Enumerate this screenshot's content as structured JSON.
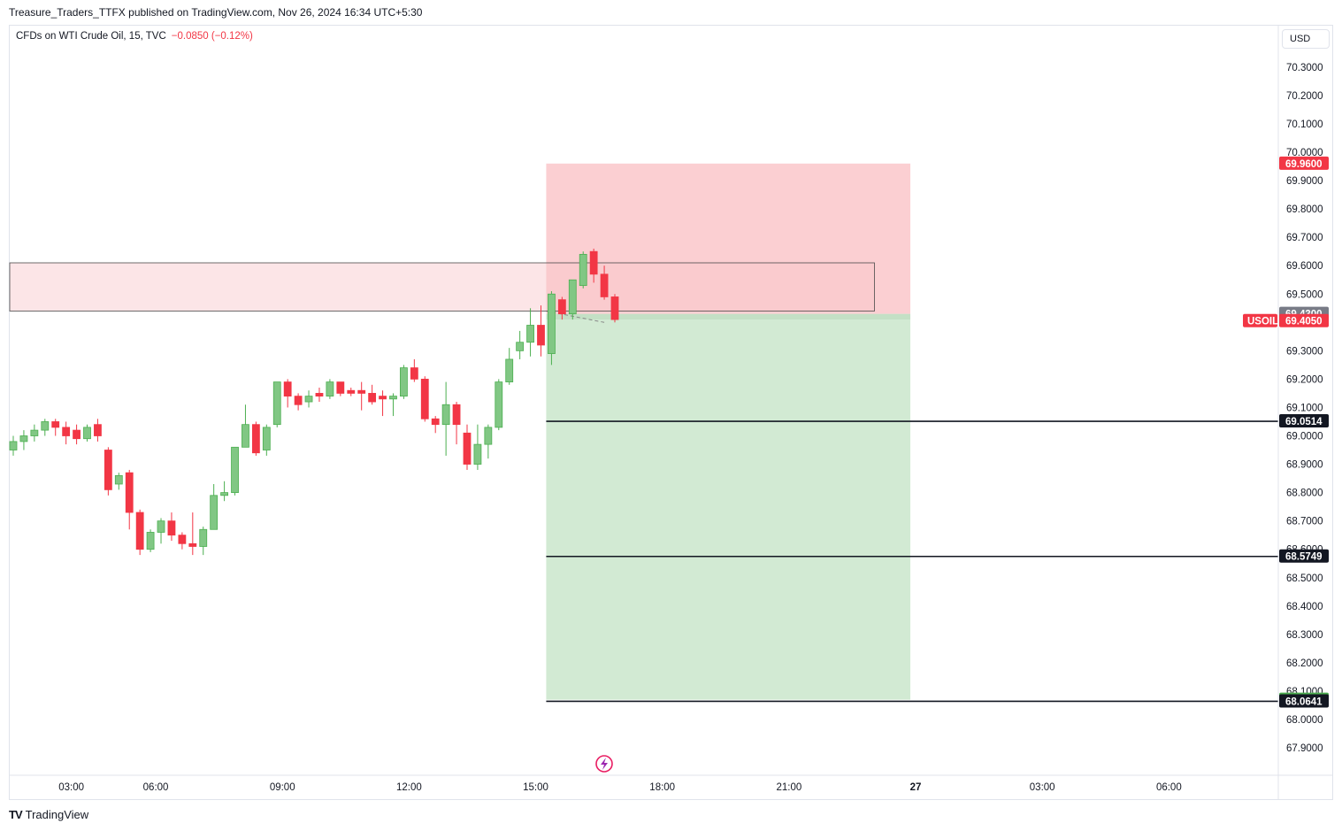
{
  "header": {
    "attribution": "Treasure_Traders_TTFX published on TradingView.com, Nov 26, 2024 16:34 UTC+5:30"
  },
  "legend": {
    "symbol": "CFDs on WTI Crude Oil, 15, TVC",
    "change": "−0.0850 (−0.12%)"
  },
  "currency": "USD",
  "footer": {
    "brand": "TradingView",
    "logo": "TV"
  },
  "colors": {
    "up": "#81c784",
    "up_border": "#4caf50",
    "down": "#f23645",
    "risk_fill": "#f7a8ad",
    "reward_fill": "#a5d6a7",
    "zone_fill": "#fce4e6",
    "tag_dark": "#131722",
    "tag_gray": "#787b86",
    "tag_green": "#4caf50",
    "tag_red": "#f23645"
  },
  "chart_data": {
    "type": "candlestick",
    "symbol_tag": "USOIL",
    "y_ticks": [
      "70.3000",
      "70.2000",
      "70.1000",
      "70.0000",
      "69.9000",
      "69.8000",
      "69.7000",
      "69.6000",
      "69.5000",
      "69.4000",
      "69.3000",
      "69.2000",
      "69.1000",
      "69.0000",
      "68.9000",
      "68.8000",
      "68.7000",
      "68.6000",
      "68.5000",
      "68.4000",
      "68.3000",
      "68.2000",
      "68.1000",
      "68.0000",
      "67.9000"
    ],
    "y_tick_values": [
      70.3,
      70.2,
      70.1,
      70.0,
      69.9,
      69.8,
      69.7,
      69.6,
      69.5,
      69.4,
      69.3,
      69.2,
      69.1,
      69.0,
      68.9,
      68.8,
      68.7,
      68.6,
      68.5,
      68.4,
      68.3,
      68.2,
      68.1,
      68.0,
      67.9
    ],
    "x_ticks": [
      {
        "label": "03:00",
        "bar": 5.5,
        "bold": false
      },
      {
        "label": "06:00",
        "bar": 13.5,
        "bold": false
      },
      {
        "label": "09:00",
        "bar": 25.5,
        "bold": false
      },
      {
        "label": "12:00",
        "bar": 37.5,
        "bold": false
      },
      {
        "label": "15:00",
        "bar": 49.5,
        "bold": false
      },
      {
        "label": "18:00",
        "bar": 61.5,
        "bold": false
      },
      {
        "label": "21:00",
        "bar": 73.5,
        "bold": false
      },
      {
        "label": "27",
        "bar": 85.5,
        "bold": true
      },
      {
        "label": "03:00",
        "bar": 97.5,
        "bold": false
      },
      {
        "label": "06:00",
        "bar": 109.5,
        "bold": false
      }
    ],
    "candles": [
      [
        68.95,
        68.98,
        68.93,
        69.0
      ],
      [
        68.98,
        69.0,
        68.95,
        69.02
      ],
      [
        69.0,
        69.02,
        68.98,
        69.04
      ],
      [
        69.02,
        69.05,
        69.0,
        69.06
      ],
      [
        69.05,
        69.03,
        69.0,
        69.06
      ],
      [
        69.03,
        69.0,
        68.97,
        69.05
      ],
      [
        69.02,
        68.99,
        68.97,
        69.04
      ],
      [
        68.99,
        69.03,
        68.98,
        69.04
      ],
      [
        69.04,
        69.0,
        68.98,
        69.06
      ],
      [
        68.95,
        68.81,
        68.79,
        68.96
      ],
      [
        68.83,
        68.86,
        68.81,
        68.87
      ],
      [
        68.87,
        68.73,
        68.67,
        68.88
      ],
      [
        68.73,
        68.6,
        68.58,
        68.74
      ],
      [
        68.6,
        68.66,
        68.59,
        68.67
      ],
      [
        68.66,
        68.7,
        68.62,
        68.71
      ],
      [
        68.7,
        68.65,
        68.63,
        68.73
      ],
      [
        68.65,
        68.62,
        68.6,
        68.66
      ],
      [
        68.62,
        68.61,
        68.58,
        68.73
      ],
      [
        68.61,
        68.67,
        68.58,
        68.68
      ],
      [
        68.67,
        68.79,
        68.67,
        68.83
      ],
      [
        68.79,
        68.8,
        68.77,
        68.84
      ],
      [
        68.8,
        68.96,
        68.79,
        68.96
      ],
      [
        68.96,
        69.04,
        68.96,
        69.11
      ],
      [
        69.04,
        68.94,
        68.93,
        69.05
      ],
      [
        68.95,
        69.03,
        68.93,
        69.04
      ],
      [
        69.04,
        69.19,
        69.03,
        69.19
      ],
      [
        69.19,
        69.14,
        69.1,
        69.2
      ],
      [
        69.14,
        69.11,
        69.09,
        69.15
      ],
      [
        69.12,
        69.14,
        69.1,
        69.16
      ],
      [
        69.15,
        69.14,
        69.12,
        69.17
      ],
      [
        69.14,
        69.19,
        69.13,
        69.2
      ],
      [
        69.19,
        69.15,
        69.14,
        69.19
      ],
      [
        69.16,
        69.15,
        69.14,
        69.17
      ],
      [
        69.16,
        69.15,
        69.09,
        69.19
      ],
      [
        69.15,
        69.12,
        69.11,
        69.18
      ],
      [
        69.14,
        69.13,
        69.07,
        69.16
      ],
      [
        69.13,
        69.14,
        69.07,
        69.15
      ],
      [
        69.14,
        69.24,
        69.13,
        69.25
      ],
      [
        69.24,
        69.2,
        69.19,
        69.27
      ],
      [
        69.2,
        69.06,
        69.05,
        69.21
      ],
      [
        69.06,
        69.04,
        69.01,
        69.07
      ],
      [
        69.04,
        69.11,
        68.93,
        69.19
      ],
      [
        69.11,
        69.04,
        68.97,
        69.12
      ],
      [
        69.01,
        68.9,
        68.88,
        69.04
      ],
      [
        68.9,
        68.97,
        68.88,
        69.04
      ],
      [
        68.97,
        69.03,
        68.92,
        69.04
      ],
      [
        69.03,
        69.19,
        69.02,
        69.2
      ],
      [
        69.19,
        69.27,
        69.18,
        69.31
      ],
      [
        69.3,
        69.33,
        69.27,
        69.37
      ],
      [
        69.33,
        69.39,
        69.28,
        69.45
      ],
      [
        69.39,
        69.32,
        69.28,
        69.46
      ],
      [
        69.29,
        69.5,
        69.25,
        69.51
      ],
      [
        69.48,
        69.43,
        69.41,
        69.49
      ],
      [
        69.43,
        69.55,
        69.41,
        69.55
      ],
      [
        69.53,
        69.64,
        69.52,
        69.65
      ],
      [
        69.65,
        69.57,
        69.54,
        69.66
      ],
      [
        69.57,
        69.49,
        69.48,
        69.6
      ],
      [
        69.49,
        69.41,
        69.4,
        69.5
      ]
    ],
    "zone": {
      "top": 69.61,
      "bottom": 69.44,
      "right_bar": 81.6
    },
    "position": {
      "entry_top": 69.43,
      "entry_bottom": 69.41,
      "stop": 69.96,
      "target": 68.07,
      "start_bar": 51,
      "end_bar": 85
    },
    "hlines": [
      {
        "value": 69.0514,
        "start_bar": 51
      },
      {
        "value": 68.5749,
        "start_bar": 51
      },
      {
        "value": 68.0641,
        "start_bar": 51
      }
    ],
    "price_tags": [
      {
        "label": "69.9600",
        "value": 69.96,
        "color": "red"
      },
      {
        "label": "69.4300",
        "value": 69.43,
        "color": "gray"
      },
      {
        "label": "69.4050",
        "value": 69.405,
        "color": "red"
      },
      {
        "label": "69.0514",
        "value": 69.0514,
        "color": "dark"
      },
      {
        "label": "68.5749",
        "value": 68.5749,
        "color": "dark"
      },
      {
        "label": "68.0700",
        "value": 68.07,
        "color": "green"
      },
      {
        "label": "68.0641",
        "value": 68.0641,
        "color": "dark"
      }
    ],
    "last_price_tag": "69.4050"
  }
}
